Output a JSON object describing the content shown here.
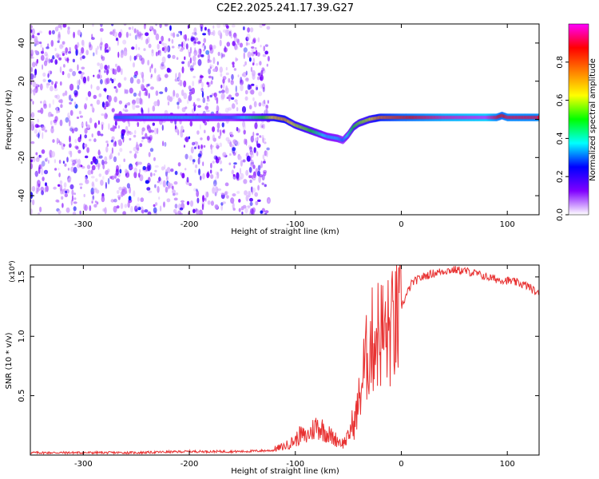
{
  "title": "C2E2.2025.241.17.39.G27",
  "chart_data": [
    {
      "type": "heatmap",
      "title": "C2E2.2025.241.17.39.G27",
      "xlabel": "Height of straight line (km)",
      "ylabel": "Frequency (Hz)",
      "xlim": [
        -350,
        130
      ],
      "ylim": [
        -50,
        50
      ],
      "x_ticks": [
        -300,
        -200,
        -100,
        0,
        100
      ],
      "y_ticks": [
        -40,
        -20,
        0,
        20,
        40
      ],
      "colorbar": {
        "label": "Normalized spectral amplitude",
        "range": [
          0,
          1
        ],
        "ticks": [
          "0.0",
          "0.2",
          "0.4",
          "0.6",
          "0.8"
        ],
        "colors": [
          "#ffffff",
          "#8000ff",
          "#0000ff",
          "#00ffff",
          "#00ff00",
          "#ffff00",
          "#ff8000",
          "#ff0000",
          "#ff00ff"
        ]
      },
      "trace": {
        "x": [
          -270,
          -240,
          -200,
          -160,
          -130,
          -120,
          -110,
          -100,
          -90,
          -80,
          -70,
          -60,
          -55,
          -50,
          -45,
          -40,
          -30,
          -20,
          0,
          40,
          80,
          90,
          95,
          100,
          130
        ],
        "freq": [
          1,
          1,
          1,
          1,
          1,
          1,
          0,
          -3,
          -5,
          -7,
          -9,
          -10,
          -11,
          -8,
          -4,
          -2,
          0,
          1,
          1,
          1,
          1,
          1,
          2,
          1,
          1
        ],
        "amplitude": [
          0.3,
          0.35,
          0.35,
          0.3,
          0.5,
          0.65,
          0.7,
          0.6,
          0.55,
          0.45,
          0.35,
          0.35,
          0.3,
          0.4,
          0.5,
          0.55,
          0.6,
          0.75,
          0.85,
          0.95,
          1.0,
          0.9,
          0.85,
          0.9,
          0.9
        ]
      },
      "noise_region": {
        "x_range": [
          -350,
          -125
        ],
        "amplitude_max": 0.2
      }
    },
    {
      "type": "line",
      "xlabel": "Height of straight line (km)",
      "ylabel": "SNR (10 * v/v)",
      "y_multiplier": "(x10⁴)",
      "xlim": [
        -350,
        130
      ],
      "ylim": [
        0,
        1.6
      ],
      "x_ticks": [
        -300,
        -200,
        -100,
        0,
        100
      ],
      "y_ticks": [
        "0.5",
        "1.0",
        "1.5"
      ],
      "color": "#e83232",
      "series": [
        {
          "name": "SNR",
          "x": [
            -350,
            -300,
            -250,
            -200,
            -150,
            -120,
            -110,
            -100,
            -95,
            -90,
            -85,
            -80,
            -75,
            -70,
            -65,
            -60,
            -55,
            -50,
            -45,
            -40,
            -35,
            -30,
            -25,
            -20,
            -15,
            -10,
            -5,
            0,
            5,
            10,
            20,
            30,
            40,
            50,
            60,
            70,
            80,
            90,
            100,
            110,
            120,
            130
          ],
          "y": [
            0.02,
            0.02,
            0.02,
            0.03,
            0.03,
            0.04,
            0.06,
            0.1,
            0.14,
            0.12,
            0.16,
            0.2,
            0.18,
            0.15,
            0.12,
            0.1,
            0.08,
            0.12,
            0.25,
            0.5,
            0.8,
            1.0,
            1.1,
            1.15,
            1.1,
            1.15,
            1.2,
            1.25,
            1.35,
            1.45,
            1.5,
            1.53,
            1.55,
            1.56,
            1.55,
            1.53,
            1.5,
            1.48,
            1.47,
            1.45,
            1.42,
            1.35
          ]
        }
      ]
    }
  ]
}
